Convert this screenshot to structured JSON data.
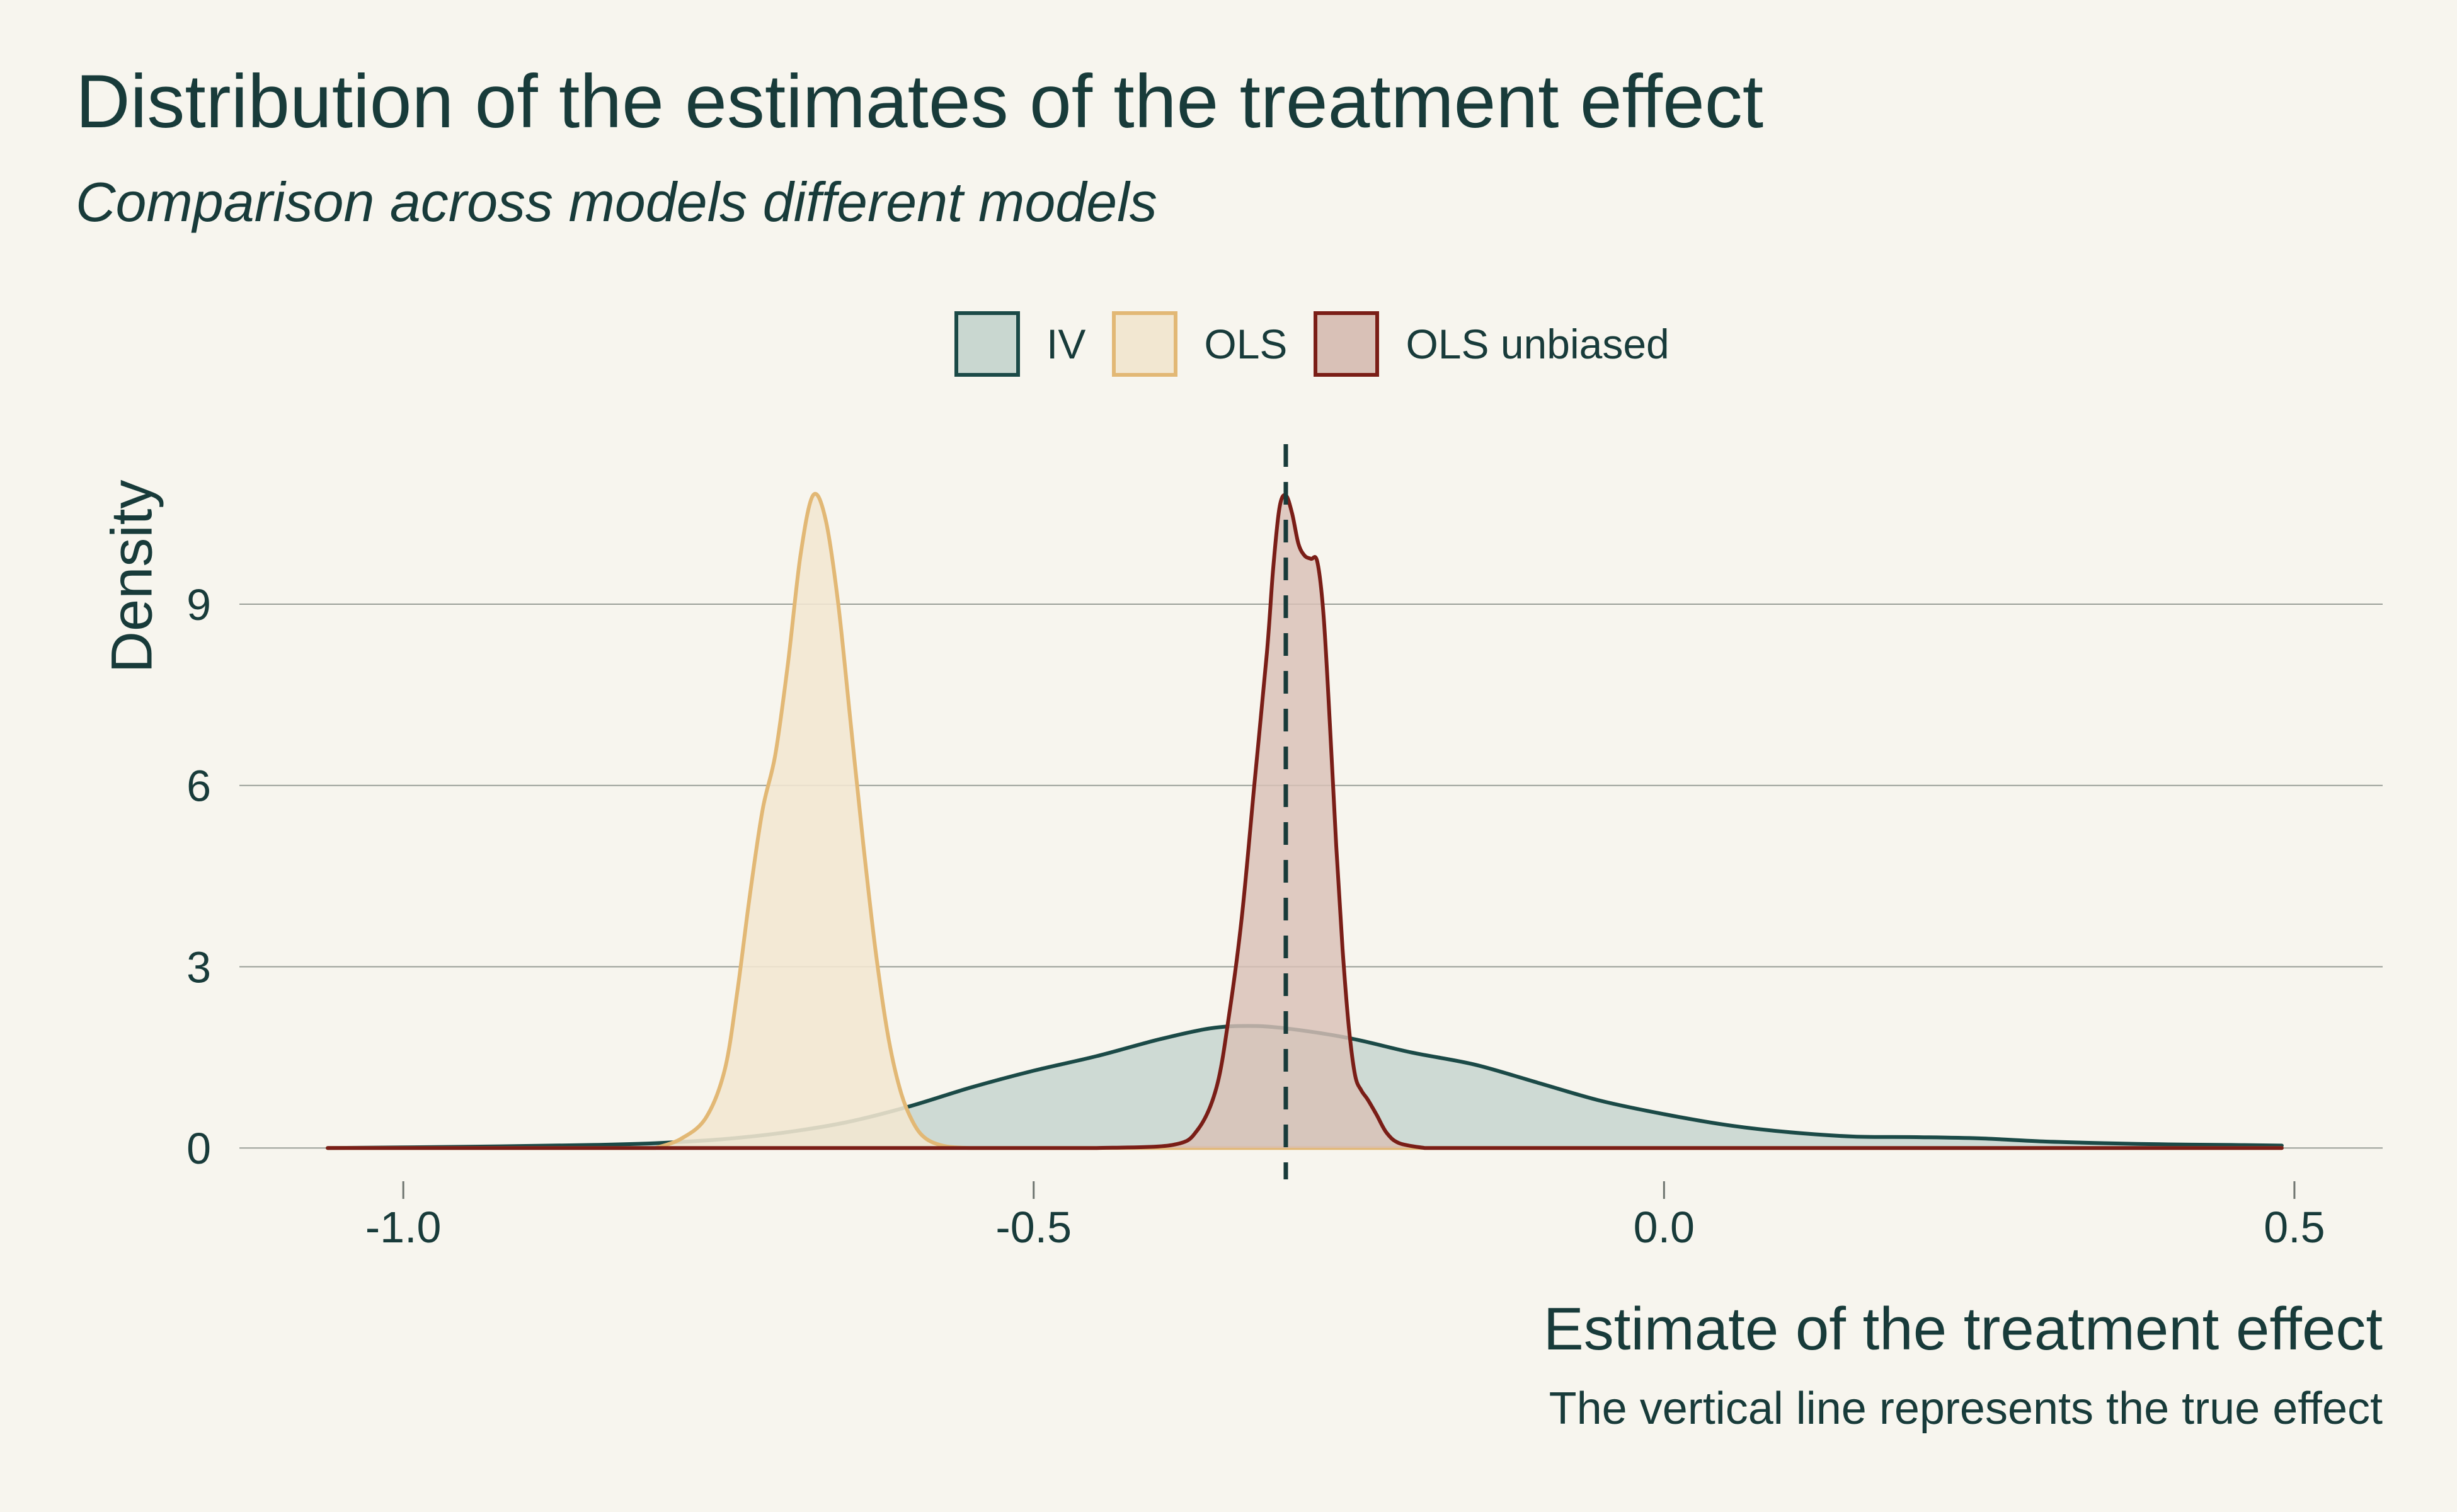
{
  "header": {
    "title": "Distribution of the estimates of the treatment effect",
    "subtitle": "Comparison across models different models"
  },
  "footer": {
    "caption": "The vertical line represents the true effect"
  },
  "chart_data": {
    "type": "area",
    "title": "Distribution of the estimates of the treatment effect",
    "subtitle": "Comparison across models different models",
    "xlabel": "Estimate of the treatment effect",
    "ylabel": "Density",
    "caption": "The vertical line represents the true effect",
    "xlim": [
      -1.13,
      0.57
    ],
    "ylim": [
      -0.55,
      11.7
    ],
    "x_ticks": [
      -1.0,
      -0.5,
      0.0,
      0.5
    ],
    "x_tick_labels": [
      "-1.0",
      "-0.5",
      "0.0",
      "0.5"
    ],
    "y_ticks": [
      0,
      3,
      6,
      9
    ],
    "y_tick_labels": [
      "0",
      "3",
      "6",
      "9"
    ],
    "grid": "horizontal",
    "legend": "top-center",
    "reference_line": {
      "x": -0.3,
      "style": "dashed",
      "color": "#183b3a"
    },
    "series": [
      {
        "name": "IV",
        "stroke": "#1b4a47",
        "fill": "#c9d7d0",
        "fill_opacity": 0.9,
        "points": [
          [
            -1.06,
            0
          ],
          [
            -0.95,
            0.02
          ],
          [
            -0.85,
            0.05
          ],
          [
            -0.8,
            0.08
          ],
          [
            -0.75,
            0.14
          ],
          [
            -0.7,
            0.25
          ],
          [
            -0.65,
            0.42
          ],
          [
            -0.6,
            0.68
          ],
          [
            -0.55,
            1.0
          ],
          [
            -0.5,
            1.28
          ],
          [
            -0.45,
            1.52
          ],
          [
            -0.4,
            1.8
          ],
          [
            -0.36,
            1.98
          ],
          [
            -0.33,
            2.02
          ],
          [
            -0.3,
            1.98
          ],
          [
            -0.25,
            1.82
          ],
          [
            -0.2,
            1.58
          ],
          [
            -0.15,
            1.38
          ],
          [
            -0.1,
            1.08
          ],
          [
            -0.05,
            0.78
          ],
          [
            0.0,
            0.56
          ],
          [
            0.05,
            0.38
          ],
          [
            0.1,
            0.26
          ],
          [
            0.15,
            0.19
          ],
          [
            0.2,
            0.18
          ],
          [
            0.25,
            0.16
          ],
          [
            0.3,
            0.11
          ],
          [
            0.35,
            0.08
          ],
          [
            0.4,
            0.06
          ],
          [
            0.45,
            0.05
          ],
          [
            0.49,
            0.04
          ]
        ]
      },
      {
        "name": "OLS",
        "stroke": "#e2b875",
        "fill": "#f2e7d1",
        "fill_opacity": 0.88,
        "points": [
          [
            -0.8,
            0
          ],
          [
            -0.78,
            0.15
          ],
          [
            -0.76,
            0.5
          ],
          [
            -0.745,
            1.3
          ],
          [
            -0.735,
            2.6
          ],
          [
            -0.725,
            4.2
          ],
          [
            -0.715,
            5.6
          ],
          [
            -0.705,
            6.5
          ],
          [
            -0.695,
            8.0
          ],
          [
            -0.685,
            9.8
          ],
          [
            -0.675,
            10.8
          ],
          [
            -0.665,
            10.4
          ],
          [
            -0.655,
            9.0
          ],
          [
            -0.645,
            7.0
          ],
          [
            -0.635,
            5.0
          ],
          [
            -0.625,
            3.2
          ],
          [
            -0.615,
            1.8
          ],
          [
            -0.605,
            0.9
          ],
          [
            -0.595,
            0.4
          ],
          [
            -0.585,
            0.15
          ],
          [
            -0.57,
            0.03
          ],
          [
            -0.55,
            0
          ]
        ]
      },
      {
        "name": "OLS unbiased",
        "stroke": "#7a1e17",
        "fill": "#d9c1b7",
        "fill_opacity": 0.82,
        "points": [
          [
            -0.45,
            0
          ],
          [
            -0.39,
            0.05
          ],
          [
            -0.37,
            0.3
          ],
          [
            -0.355,
            1.0
          ],
          [
            -0.345,
            2.2
          ],
          [
            -0.335,
            3.8
          ],
          [
            -0.325,
            6.0
          ],
          [
            -0.315,
            8.2
          ],
          [
            -0.31,
            9.6
          ],
          [
            -0.305,
            10.6
          ],
          [
            -0.3,
            10.8
          ],
          [
            -0.295,
            10.5
          ],
          [
            -0.29,
            10.0
          ],
          [
            -0.285,
            9.8
          ],
          [
            -0.28,
            9.75
          ],
          [
            -0.275,
            9.7
          ],
          [
            -0.27,
            8.8
          ],
          [
            -0.265,
            7.0
          ],
          [
            -0.26,
            5.0
          ],
          [
            -0.255,
            3.3
          ],
          [
            -0.25,
            2.0
          ],
          [
            -0.245,
            1.2
          ],
          [
            -0.24,
            0.95
          ],
          [
            -0.235,
            0.8
          ],
          [
            -0.228,
            0.55
          ],
          [
            -0.22,
            0.25
          ],
          [
            -0.21,
            0.08
          ],
          [
            -0.19,
            0
          ]
        ]
      }
    ]
  }
}
